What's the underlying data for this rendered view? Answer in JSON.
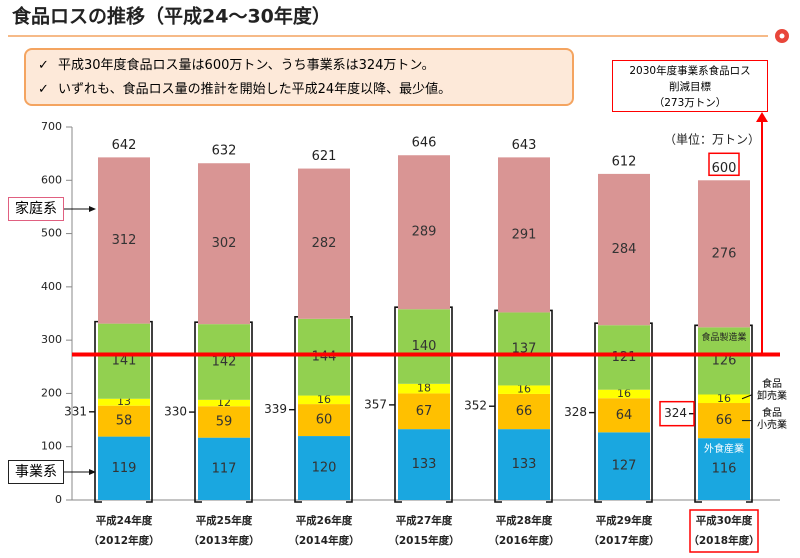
{
  "chart_data": {
    "type": "stacked_bar",
    "title": "食品ロスの推移（平成24～30年度）",
    "notes": [
      "平成30年度食品ロス量は600万トン、うち事業系は324万トン。",
      "いずれも、食品ロス量の推計を開始した平成24年度以降、最少値。"
    ],
    "unit": "（単位：万トン）",
    "categories": [
      "平成24年度",
      "平成25年度",
      "平成26年度",
      "平成27年度",
      "平成28年度",
      "平成29年度",
      "平成30年度"
    ],
    "category_years": [
      "（2012年度）",
      "（2013年度）",
      "（2014年度）",
      "（2015年度）",
      "（2016年度）",
      "（2017年度）",
      "（2018年度）"
    ],
    "series": [
      {
        "name": "外食産業",
        "color": "#1aa7e0",
        "values": [
          119,
          117,
          120,
          133,
          133,
          127,
          116
        ]
      },
      {
        "name": "食品\n小売業",
        "color": "#ffc000",
        "values": [
          58,
          59,
          60,
          67,
          66,
          64,
          66
        ]
      },
      {
        "name": "食品\n卸売業",
        "color": "#ffff00",
        "values": [
          13,
          12,
          16,
          18,
          16,
          16,
          16
        ]
      },
      {
        "name": "食品製造業",
        "color": "#92d050",
        "values": [
          141,
          142,
          144,
          140,
          137,
          121,
          126
        ]
      },
      {
        "name": "家庭系",
        "color": "#d99594",
        "values": [
          312,
          302,
          282,
          289,
          291,
          284,
          276
        ]
      }
    ],
    "business_label": "事業系",
    "business_totals": [
      331,
      330,
      339,
      357,
      352,
      328,
      324
    ],
    "totals": [
      642,
      632,
      621,
      646,
      643,
      612,
      600
    ],
    "target_line": {
      "value": 273,
      "label": "2030年度事業系食品ロス\n削減目標\n（273万トン）",
      "color": "#ff0000"
    },
    "ylim": [
      0,
      700
    ],
    "yticks": [
      0,
      100,
      200,
      300,
      400,
      500,
      600,
      700
    ]
  }
}
